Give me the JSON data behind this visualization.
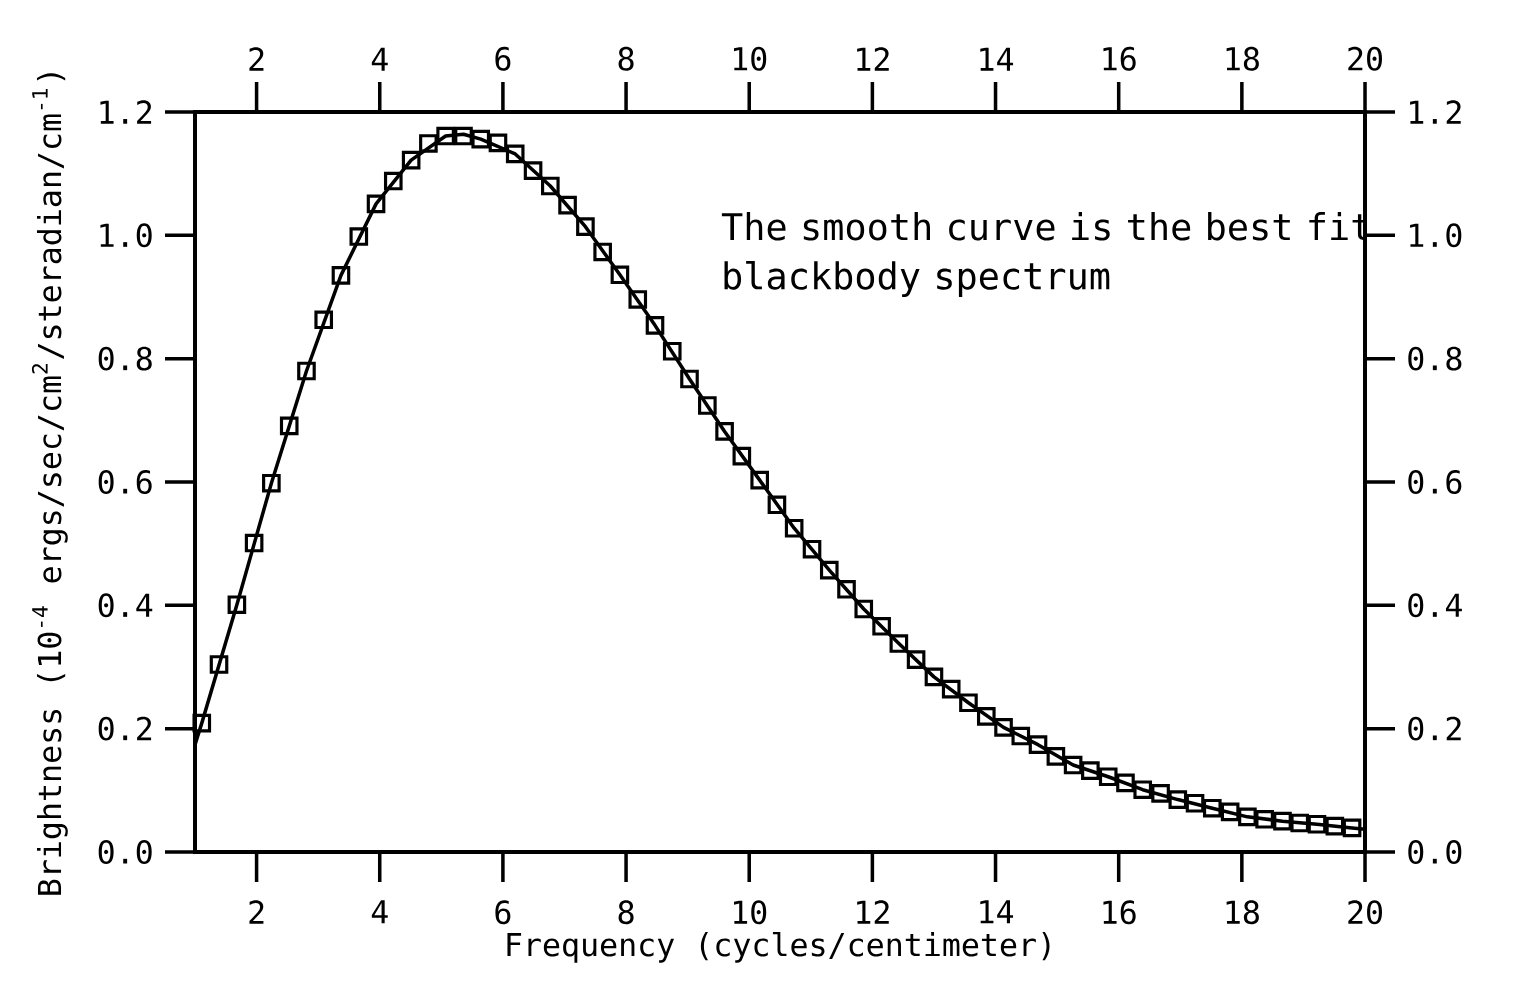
{
  "chart_data": {
    "type": "scatter",
    "xlabel": "Frequency (cycles/centimeter)",
    "ylabel": "Brightness (10$^{-4}$ ergs/sec/cm$^{2}$/steradian/cm$^{-1}$)",
    "annotations": [
      "The smooth curve is the best fit blackbody spectrum"
    ],
    "xlim": [
      1,
      20
    ],
    "xticks": [
      2,
      4,
      6,
      8,
      10,
      12,
      14,
      16,
      18,
      20
    ],
    "x2lim": [
      1,
      20
    ],
    "x2ticks": [
      2,
      4,
      6,
      8,
      10,
      12,
      14,
      16,
      18,
      20
    ],
    "ylim": [
      0,
      1.2
    ],
    "yticks": [
      {
        "value": 0,
        "label": "0.0"
      },
      {
        "value": 0.2,
        "label": "0.2"
      },
      {
        "value": 0.4,
        "label": "0.4"
      },
      {
        "value": 0.6,
        "label": "0.6"
      },
      {
        "value": 0.8,
        "label": "0.8"
      },
      {
        "value": 1.0,
        "label": "1.0"
      },
      {
        "value": 1.2,
        "label": "1.2"
      }
    ],
    "y2lim": [
      0,
      1.2
    ],
    "y2ticks": [
      {
        "value": 0,
        "label": "0.0"
      },
      {
        "value": 0.2,
        "label": "0.2"
      },
      {
        "value": 0.4,
        "label": "0.4"
      },
      {
        "value": 0.6,
        "label": "0.6"
      },
      {
        "value": 0.8,
        "label": "0.8"
      },
      {
        "value": 1.0,
        "label": "1.0"
      },
      {
        "value": 1.2,
        "label": "1.2"
      }
    ],
    "marker": "square",
    "series": [
      {
        "color": "#000000",
        "x": [
          1.11,
          1.39,
          1.68,
          1.96,
          2.24,
          2.53,
          2.81,
          3.09,
          3.37,
          3.66,
          3.94,
          4.22,
          4.51,
          4.79,
          5.07,
          5.36,
          5.64,
          5.92,
          6.2,
          6.49,
          6.77,
          7.05,
          7.34,
          7.62,
          7.9,
          8.19,
          8.47,
          8.75,
          9.03,
          9.32,
          9.6,
          9.88,
          10.17,
          10.45,
          10.73,
          11.02,
          11.3,
          11.58,
          11.86,
          12.15,
          12.43,
          12.71,
          13.0,
          13.28,
          13.56,
          13.85,
          14.13,
          14.41,
          14.69,
          14.98,
          15.26,
          15.54,
          15.83,
          16.11,
          16.39,
          16.68,
          16.96,
          17.24,
          17.52,
          17.81,
          18.09,
          18.37,
          18.66,
          18.94,
          19.22,
          19.51,
          19.79
        ],
        "values": [
          0.209,
          0.304,
          0.401,
          0.501,
          0.598,
          0.691,
          0.78,
          0.863,
          0.935,
          0.998,
          1.051,
          1.088,
          1.122,
          1.149,
          1.161,
          1.161,
          1.156,
          1.15,
          1.132,
          1.105,
          1.08,
          1.049,
          1.014,
          0.973,
          0.936,
          0.896,
          0.854,
          0.812,
          0.767,
          0.724,
          0.682,
          0.642,
          0.603,
          0.563,
          0.525,
          0.491,
          0.457,
          0.426,
          0.394,
          0.366,
          0.338,
          0.312,
          0.284,
          0.264,
          0.242,
          0.22,
          0.202,
          0.188,
          0.174,
          0.155,
          0.141,
          0.132,
          0.122,
          0.112,
          0.101,
          0.095,
          0.085,
          0.079,
          0.071,
          0.065,
          0.057,
          0.053,
          0.05,
          0.047,
          0.045,
          0.042,
          0.039
        ]
      },
      {
        "type": "line",
        "color": "#000000",
        "marker": "none",
        "line_style": "solid",
        "x": [
          1.0,
          1.11,
          1.68,
          2.24,
          2.81,
          3.37,
          3.94,
          4.51,
          5.07,
          5.36,
          5.64,
          6.2,
          6.77,
          7.34,
          7.9,
          8.47,
          9.03,
          9.6,
          10.17,
          10.73,
          11.3,
          11.86,
          12.43,
          13.0,
          13.56,
          14.13,
          14.69,
          15.26,
          15.83,
          16.39,
          16.96,
          17.52,
          18.09,
          18.66,
          19.22,
          19.79,
          20.0
        ],
        "values": [
          0.174,
          0.209,
          0.401,
          0.598,
          0.78,
          0.935,
          1.051,
          1.122,
          1.161,
          1.164,
          1.156,
          1.132,
          1.08,
          1.014,
          0.936,
          0.854,
          0.767,
          0.682,
          0.603,
          0.525,
          0.457,
          0.394,
          0.338,
          0.284,
          0.242,
          0.202,
          0.174,
          0.141,
          0.122,
          0.101,
          0.085,
          0.071,
          0.057,
          0.05,
          0.045,
          0.039,
          0.037
        ]
      }
    ]
  }
}
